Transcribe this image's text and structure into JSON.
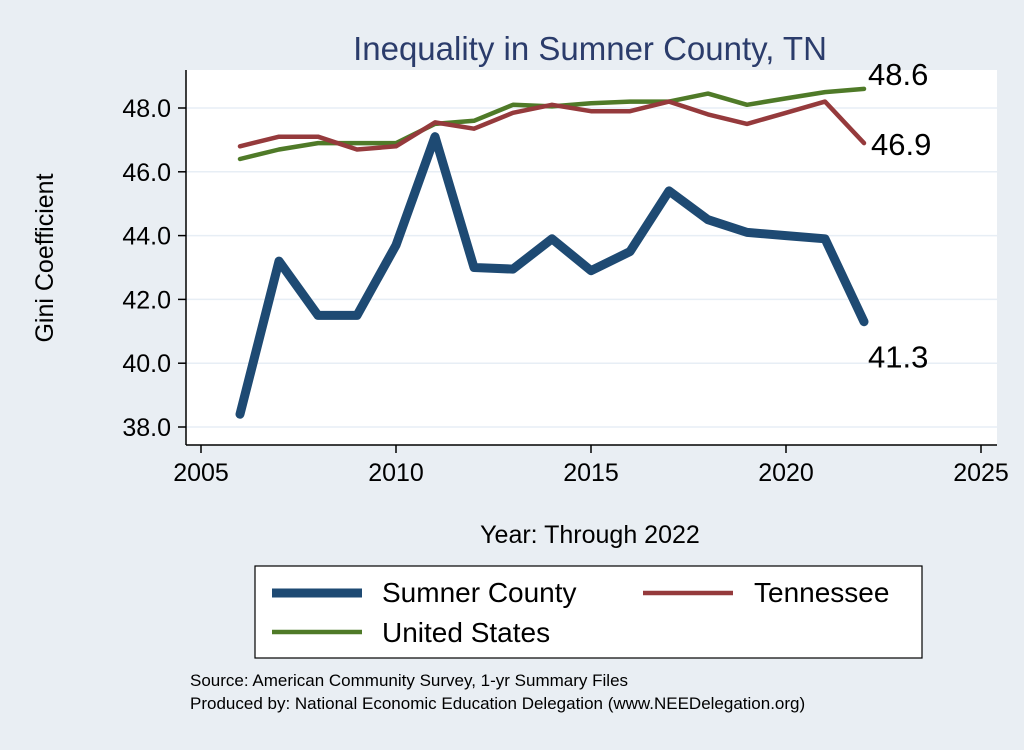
{
  "chart_data": {
    "type": "line",
    "title": "Inequality in Sumner County, TN",
    "xlabel": "Year: Through 2022",
    "ylabel": "Gini Coefficient",
    "xlim": [
      2005,
      2025
    ],
    "ylim": [
      38,
      48.6
    ],
    "x_ticks": [
      "2005",
      "2010",
      "2015",
      "2020",
      "2025"
    ],
    "y_ticks": [
      "38.0",
      "40.0",
      "42.0",
      "44.0",
      "46.0",
      "48.0"
    ],
    "grid": true,
    "legend_position": "bottom",
    "series": [
      {
        "name": "Sumner County",
        "color": "#1e4a73",
        "x": [
          2006,
          2007,
          2008,
          2009,
          2010,
          2011,
          2012,
          2013,
          2014,
          2015,
          2016,
          2017,
          2018,
          2019,
          2020,
          2021,
          2022
        ],
        "values": [
          38.4,
          43.2,
          41.5,
          41.5,
          43.7,
          47.1,
          43.0,
          42.95,
          43.9,
          42.9,
          43.5,
          45.4,
          44.5,
          44.1,
          44.0,
          43.9,
          41.3
        ],
        "end_label": "41.3"
      },
      {
        "name": "Tennessee",
        "color": "#953a3c",
        "x": [
          2006,
          2007,
          2008,
          2009,
          2010,
          2011,
          2012,
          2013,
          2014,
          2015,
          2016,
          2017,
          2018,
          2019,
          2020,
          2021,
          2022
        ],
        "values": [
          46.8,
          47.1,
          47.1,
          46.7,
          46.8,
          47.55,
          47.35,
          47.85,
          48.1,
          47.9,
          47.9,
          48.2,
          47.8,
          47.5,
          47.85,
          48.2,
          46.9
        ],
        "end_label": "46.9"
      },
      {
        "name": "United States",
        "color": "#4f7a28",
        "x": [
          2006,
          2007,
          2008,
          2009,
          2010,
          2011,
          2012,
          2013,
          2014,
          2015,
          2016,
          2017,
          2018,
          2019,
          2020,
          2021,
          2022
        ],
        "values": [
          46.4,
          46.7,
          46.9,
          46.9,
          46.9,
          47.5,
          47.6,
          48.1,
          48.05,
          48.15,
          48.2,
          48.2,
          48.45,
          48.1,
          48.3,
          48.5,
          48.6
        ],
        "end_label": "48.6"
      }
    ]
  },
  "footer": {
    "source": "Source: American Community Survey, 1-yr Summary Files",
    "produced_by": "Produced by: National Economic Education Delegation (www.NEEDelegation.org)"
  }
}
